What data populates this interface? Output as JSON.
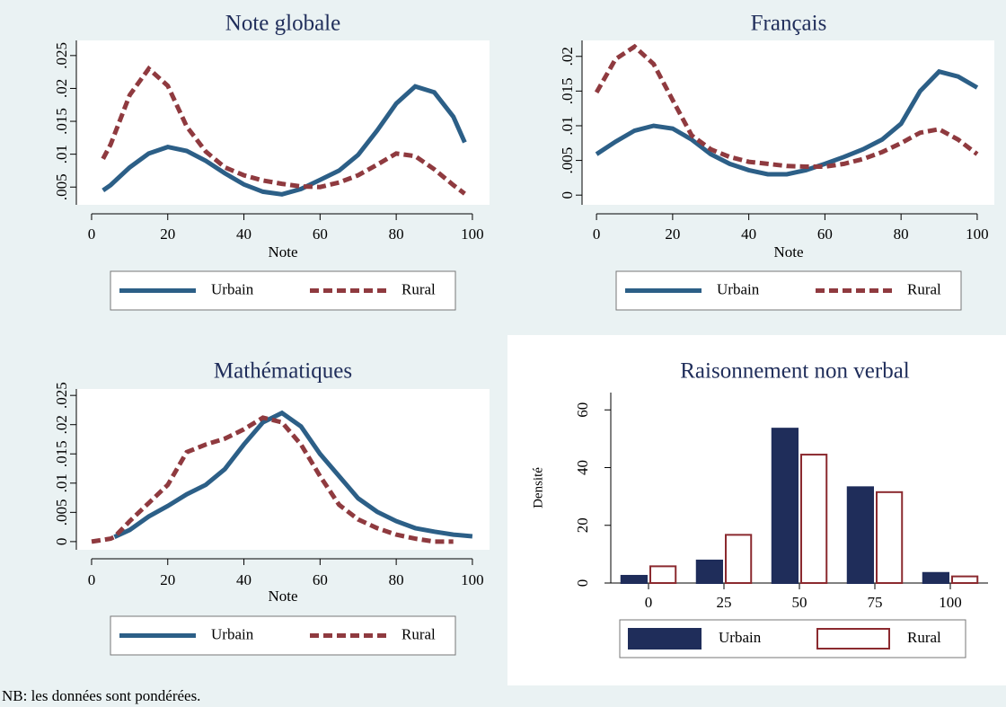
{
  "note": "NB: les données sont pondérées.",
  "chart_data": [
    {
      "type": "line",
      "title": "Note globale",
      "xlabel": "Note",
      "x": [
        3,
        5,
        10,
        15,
        20,
        25,
        30,
        35,
        40,
        45,
        50,
        55,
        60,
        65,
        70,
        75,
        80,
        85,
        90,
        95,
        98
      ],
      "series": [
        {
          "name": "Urbain",
          "color": "#2c5f87",
          "line_style": "solid",
          "values": [
            0.0045,
            0.0053,
            0.008,
            0.0101,
            0.0111,
            0.0105,
            0.009,
            0.0071,
            0.0054,
            0.0043,
            0.0039,
            0.0047,
            0.0061,
            0.0075,
            0.0099,
            0.0136,
            0.0177,
            0.0203,
            0.0194,
            0.0157,
            0.0118
          ]
        },
        {
          "name": "Rural",
          "color": "#8f3a3f",
          "line_style": "dash",
          "values": [
            0.0093,
            0.0115,
            0.019,
            0.023,
            0.0204,
            0.0142,
            0.0104,
            0.008,
            0.0068,
            0.006,
            0.0055,
            0.0051,
            0.005,
            0.0057,
            0.0068,
            0.0084,
            0.0101,
            0.0097,
            0.0077,
            0.0053,
            0.004
          ]
        }
      ],
      "xlim": [
        -4,
        104.5
      ],
      "xticks": [
        0,
        20,
        40,
        60,
        80,
        100
      ],
      "ylim": [
        0.0023,
        0.0273
      ],
      "yticks": [
        {
          "value": 0.005,
          "label": ".005"
        },
        {
          "value": 0.01,
          "label": ".01"
        },
        {
          "value": 0.015,
          "label": ".015"
        },
        {
          "value": 0.02,
          "label": ".02"
        },
        {
          "value": 0.025,
          "label": ".025"
        }
      ]
    },
    {
      "type": "line",
      "title": "Français",
      "xlabel": "Note",
      "x": [
        0,
        5,
        10,
        15,
        20,
        25,
        30,
        35,
        40,
        45,
        50,
        55,
        60,
        65,
        70,
        75,
        80,
        85,
        90,
        95,
        100
      ],
      "series": [
        {
          "name": "Urbain",
          "color": "#2c5f87",
          "line_style": "solid",
          "values": [
            0.0059,
            0.0077,
            0.0093,
            0.01,
            0.0096,
            0.008,
            0.0059,
            0.0045,
            0.0036,
            0.003,
            0.003,
            0.0036,
            0.0045,
            0.0055,
            0.0066,
            0.008,
            0.0103,
            0.015,
            0.0178,
            0.0171,
            0.0155
          ]
        },
        {
          "name": "Rural",
          "color": "#8f3a3f",
          "line_style": "dash",
          "values": [
            0.0148,
            0.0196,
            0.0214,
            0.0189,
            0.0137,
            0.0086,
            0.0066,
            0.0055,
            0.0048,
            0.0045,
            0.0042,
            0.0041,
            0.0041,
            0.0045,
            0.0052,
            0.0062,
            0.0075,
            0.009,
            0.0095,
            0.008,
            0.0059
          ]
        }
      ],
      "xlim": [
        -3.8,
        104.5
      ],
      "xticks": [
        0,
        20,
        40,
        60,
        80,
        100
      ],
      "ylim": [
        -0.0014,
        0.0223
      ],
      "yticks": [
        0,
        {
          "value": 0.005,
          "label": ".005"
        },
        {
          "value": 0.01,
          "label": ".01"
        },
        {
          "value": 0.015,
          "label": ".015"
        },
        {
          "value": 0.02,
          "label": ".02"
        }
      ]
    },
    {
      "type": "line",
      "title": "Mathématiques",
      "xlabel": "Note",
      "x": [
        0,
        5,
        6,
        10,
        15,
        20,
        25,
        30,
        35,
        40,
        45,
        50,
        55,
        60,
        65,
        70,
        75,
        80,
        85,
        90,
        95,
        100
      ],
      "series": [
        {
          "name": "Urbain",
          "color": "#2c5f87",
          "line_style": "solid",
          "values": [
            null,
            null,
            0.0008,
            0.002,
            0.0043,
            0.0061,
            0.0081,
            0.0097,
            0.0124,
            0.0166,
            0.0204,
            0.022,
            0.0197,
            0.015,
            0.0112,
            0.0074,
            0.0051,
            0.0035,
            0.0023,
            0.0017,
            0.0012,
            0.0009
          ]
        },
        {
          "name": "Rural",
          "color": "#8f3a3f",
          "line_style": "dash",
          "values": [
            0,
            0.0005,
            0.0008,
            0.0035,
            0.0066,
            0.0097,
            0.0153,
            0.0166,
            0.0176,
            0.0192,
            0.0212,
            0.0204,
            0.0166,
            0.0112,
            0.0063,
            0.0038,
            0.0023,
            0.0012,
            0.0005,
            0,
            0,
            null
          ]
        }
      ],
      "xlim": [
        -4,
        104.5
      ],
      "xticks": [
        0,
        20,
        40,
        60,
        80,
        100
      ],
      "ylim": [
        -0.0014,
        0.0261
      ],
      "yticks": [
        0,
        {
          "value": 0.005,
          "label": ".005"
        },
        {
          "value": 0.01,
          "label": ".01"
        },
        {
          "value": 0.015,
          "label": ".015"
        },
        {
          "value": 0.02,
          "label": ".02"
        },
        {
          "value": 0.025,
          "label": ".025"
        }
      ]
    },
    {
      "type": "bar",
      "title": "Raisonnement non verbal",
      "ylabel": "Densité",
      "categories": [
        "0",
        "25",
        "50",
        "75",
        "100"
      ],
      "series": [
        {
          "name": "Urbain",
          "color": "#1f2d5a",
          "filled": true,
          "values": [
            2.5,
            7.8,
            53.5,
            33.2,
            3.5
          ]
        },
        {
          "name": "Rural",
          "color": "#8b2a2f",
          "filled": false,
          "values": [
            5.8,
            16.7,
            44.5,
            31.5,
            2.3
          ]
        }
      ],
      "ylim": [
        0,
        66
      ],
      "yticks": [
        0,
        20,
        40,
        60
      ]
    }
  ]
}
